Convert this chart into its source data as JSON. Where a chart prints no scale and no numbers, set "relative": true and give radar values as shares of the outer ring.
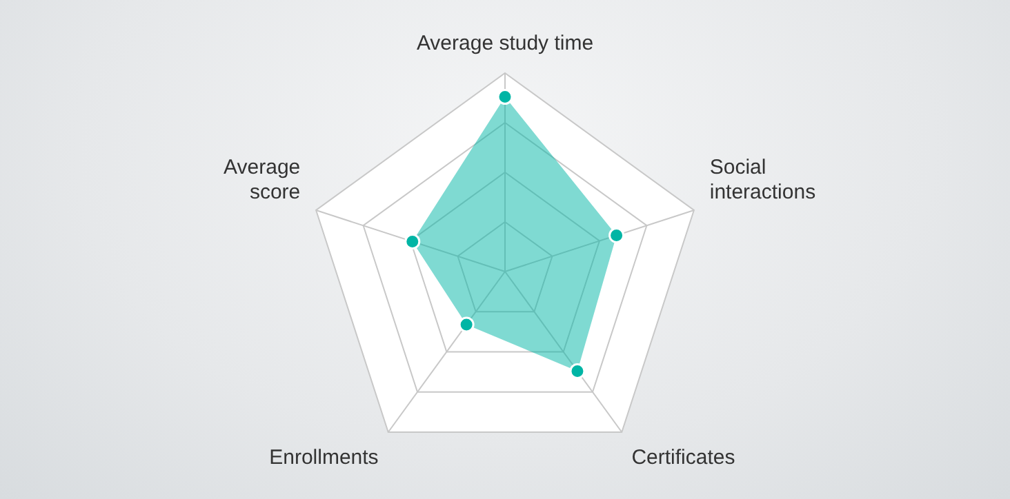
{
  "chart_data": {
    "type": "radar",
    "relative": true,
    "categories": [
      "Average study time",
      "Social interactions",
      "Certificates",
      "Enrollments",
      "Average score"
    ],
    "series": [
      {
        "color": "#00b5a5",
        "values": [
          0.88,
          0.59,
          0.62,
          0.33,
          0.49
        ]
      }
    ],
    "marker": "circle",
    "legend": false
  }
}
